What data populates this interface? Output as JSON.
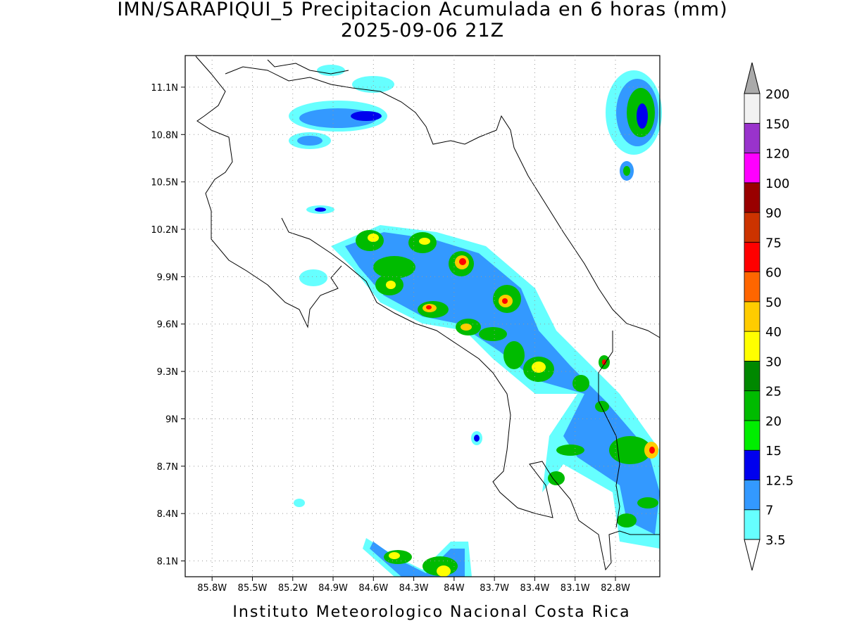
{
  "map": {
    "title": "IMN/SARAPIQUI_5 Precipitacion Acumulada en 6 horas (mm)",
    "subtitle": "2025-09-06 21Z",
    "footer": "Instituto Meteorologico Nacional Costa Rica",
    "lonlim": [
      -86.0,
      -82.47
    ],
    "latlim": [
      8.0,
      11.3
    ],
    "lon_ticks": [
      {
        "value": -85.8,
        "label": "85.8W"
      },
      {
        "value": -85.5,
        "label": "85.5W"
      },
      {
        "value": -85.2,
        "label": "85.2W"
      },
      {
        "value": -84.9,
        "label": "84.9W"
      },
      {
        "value": -84.6,
        "label": "84.6W"
      },
      {
        "value": -84.3,
        "label": "84.3W"
      },
      {
        "value": -84.0,
        "label": "84W"
      },
      {
        "value": -83.7,
        "label": "83.7W"
      },
      {
        "value": -83.4,
        "label": "83.4W"
      },
      {
        "value": -83.1,
        "label": "83.1W"
      },
      {
        "value": -82.8,
        "label": "82.8W"
      }
    ],
    "lat_ticks": [
      {
        "value": 8.1,
        "label": "8.1N"
      },
      {
        "value": 8.4,
        "label": "8.4N"
      },
      {
        "value": 8.7,
        "label": "8.7N"
      },
      {
        "value": 9.0,
        "label": "9N"
      },
      {
        "value": 9.3,
        "label": "9.3N"
      },
      {
        "value": 9.6,
        "label": "9.6N"
      },
      {
        "value": 9.9,
        "label": "9.9N"
      },
      {
        "value": 10.2,
        "label": "10.2N"
      },
      {
        "value": 10.5,
        "label": "10.5N"
      },
      {
        "value": 10.8,
        "label": "10.8N"
      },
      {
        "value": 11.1,
        "label": "11.1N"
      }
    ],
    "grid": true
  },
  "colorbar": {
    "levels": [
      3.5,
      7,
      12.5,
      15,
      20,
      25,
      30,
      40,
      50,
      60,
      75,
      90,
      100,
      120,
      150,
      200
    ],
    "colors": [
      "#66ffff",
      "#3399ff",
      "#0000ee",
      "#00ee00",
      "#00bb00",
      "#008800",
      "#ffff00",
      "#ffcc00",
      "#ff6600",
      "#ff0000",
      "#cc3300",
      "#990000",
      "#ff00ff",
      "#9933cc",
      "#f2f2f2"
    ],
    "under_color": "#ffffff",
    "over_color": "#aaaaaa"
  }
}
